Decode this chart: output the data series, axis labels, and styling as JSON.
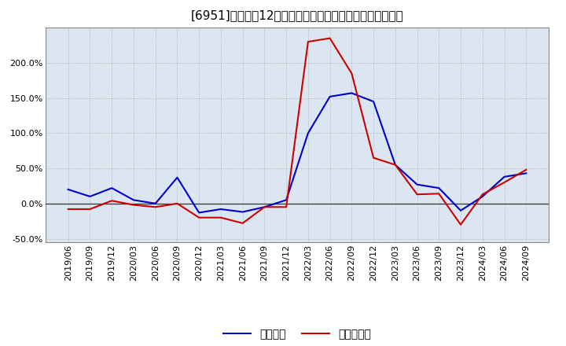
{
  "title": "[6951]　利益だ12か月移動合計の対前年同期増減率の推移",
  "x_labels": [
    "2019/06",
    "2019/09",
    "2019/12",
    "2020/03",
    "2020/06",
    "2020/09",
    "2020/12",
    "2021/03",
    "2021/06",
    "2021/09",
    "2021/12",
    "2022/03",
    "2022/06",
    "2022/09",
    "2022/12",
    "2023/03",
    "2023/06",
    "2023/09",
    "2023/12",
    "2024/03",
    "2024/06",
    "2024/09"
  ],
  "operating_profit": [
    20,
    10,
    22,
    5,
    0,
    37,
    -13,
    -8,
    -12,
    -5,
    5,
    100,
    152,
    157,
    145,
    55,
    27,
    22,
    -10,
    10,
    38,
    43
  ],
  "net_profit": [
    -8,
    -8,
    4,
    -2,
    -5,
    0,
    -20,
    -20,
    -28,
    -5,
    -5,
    230,
    235,
    185,
    65,
    55,
    13,
    14,
    -30,
    13,
    30,
    48
  ],
  "line_color_operating": "#0000cc",
  "line_color_net": "#cc0000",
  "background_color": "#ffffff",
  "plot_bg_color": "#dce6f0",
  "grid_color": "#aaaaaa",
  "zero_line_color": "#333333",
  "ytick_labels": [
    "-50.0%",
    "0.0%",
    "50.0%",
    "100.0%",
    "150.0%",
    "200.0%"
  ],
  "ytick_values": [
    -50,
    0,
    50,
    100,
    150,
    200
  ],
  "ylim": [
    -55,
    250
  ],
  "legend_operating": "経常利益",
  "legend_net": "当期純利益",
  "title_fontsize": 11,
  "axis_fontsize": 8,
  "legend_fontsize": 10
}
